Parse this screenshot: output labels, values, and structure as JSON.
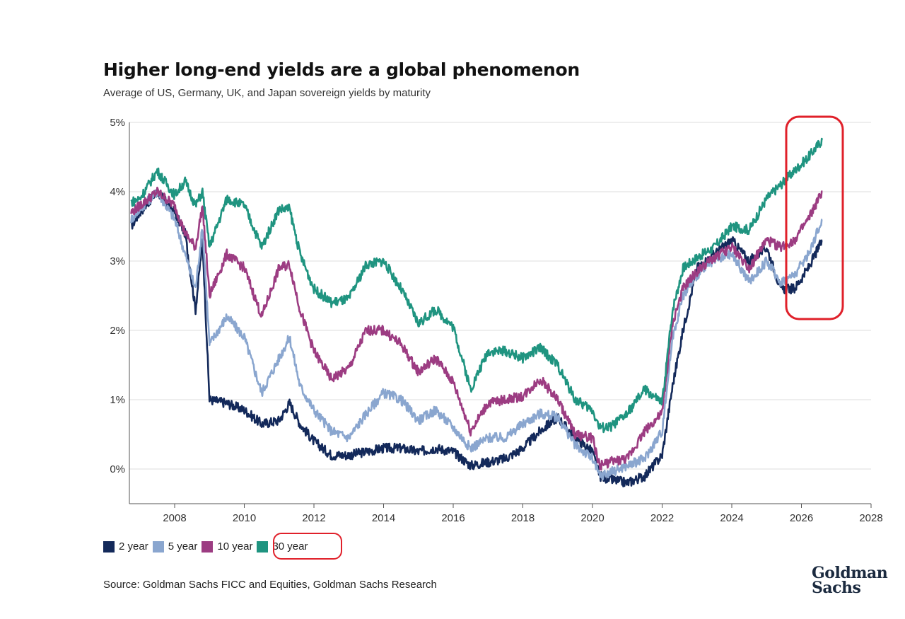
{
  "title": "Higher long-end yields are a global phenomenon",
  "subtitle": "Average of US, Germany, UK, and Japan sovereign yields by maturity",
  "source": "Source: Goldman Sachs FICC and Equities, Goldman Sachs Research",
  "logo": {
    "line1": "Goldman",
    "line2": "Sachs"
  },
  "chart_data": {
    "type": "line",
    "title": "Higher long-end yields are a global phenomenon",
    "subtitle": "Average of US, Germany, UK, and Japan sovereign yields by maturity",
    "xlabel": "",
    "ylabel": "",
    "xlim": [
      2006.7,
      2028
    ],
    "ylim": [
      -0.5,
      5
    ],
    "x_ticks": [
      "2008",
      "2010",
      "2012",
      "2014",
      "2016",
      "2018",
      "2020",
      "2022",
      "2024",
      "2026",
      "2028"
    ],
    "y_ticks": [
      "0%",
      "1%",
      "2%",
      "3%",
      "4%",
      "5%"
    ],
    "grid": "horizontal",
    "legend_position": "bottom-left",
    "highlights": [
      "30 year legend entry circled in red",
      "2025-2026 end of series circled in red"
    ],
    "series": [
      {
        "name": "2 year",
        "color": "#13295a",
        "x": [
          2006.75,
          2007.0,
          2007.5,
          2008.0,
          2008.3,
          2008.6,
          2008.8,
          2009.0,
          2009.5,
          2010.0,
          2010.5,
          2011.0,
          2011.3,
          2011.6,
          2012.0,
          2012.5,
          2013.0,
          2013.5,
          2014.0,
          2014.5,
          2015.0,
          2015.5,
          2016.0,
          2016.5,
          2017.0,
          2017.5,
          2018.0,
          2018.5,
          2019.0,
          2019.5,
          2020.0,
          2020.2,
          2020.5,
          2021.0,
          2021.5,
          2022.0,
          2022.3,
          2022.6,
          2023.0,
          2023.5,
          2024.0,
          2024.5,
          2025.0,
          2025.4,
          2025.8,
          2026.2,
          2026.6
        ],
        "values": [
          3.5,
          3.7,
          4.0,
          3.7,
          3.4,
          2.3,
          3.3,
          1.0,
          0.95,
          0.85,
          0.65,
          0.7,
          0.95,
          0.65,
          0.4,
          0.2,
          0.2,
          0.25,
          0.3,
          0.3,
          0.25,
          0.3,
          0.25,
          0.05,
          0.1,
          0.15,
          0.3,
          0.55,
          0.75,
          0.45,
          0.25,
          -0.1,
          -0.15,
          -0.2,
          -0.1,
          0.2,
          1.2,
          2.0,
          2.9,
          3.1,
          3.3,
          3.0,
          3.2,
          2.6,
          2.6,
          2.9,
          3.3
        ]
      },
      {
        "name": "5 year",
        "color": "#8aa6cf",
        "x": [
          2006.75,
          2007.0,
          2007.5,
          2008.0,
          2008.3,
          2008.6,
          2008.8,
          2009.0,
          2009.5,
          2010.0,
          2010.5,
          2011.0,
          2011.3,
          2011.6,
          2012.0,
          2012.5,
          2013.0,
          2013.5,
          2014.0,
          2014.5,
          2015.0,
          2015.5,
          2016.0,
          2016.5,
          2017.0,
          2017.5,
          2018.0,
          2018.5,
          2019.0,
          2019.5,
          2020.0,
          2020.2,
          2020.5,
          2021.0,
          2021.5,
          2022.0,
          2022.3,
          2022.6,
          2023.0,
          2023.5,
          2024.0,
          2024.5,
          2025.0,
          2025.4,
          2025.8,
          2026.2,
          2026.6
        ],
        "values": [
          3.6,
          3.75,
          4.0,
          3.6,
          3.1,
          2.6,
          3.5,
          1.8,
          2.2,
          1.9,
          1.1,
          1.6,
          1.9,
          1.2,
          0.85,
          0.55,
          0.45,
          0.8,
          1.1,
          1.0,
          0.7,
          0.85,
          0.6,
          0.3,
          0.45,
          0.45,
          0.65,
          0.8,
          0.75,
          0.35,
          0.15,
          -0.1,
          -0.05,
          0.05,
          0.15,
          0.55,
          1.9,
          2.5,
          2.8,
          3.0,
          3.1,
          2.7,
          3.0,
          2.7,
          2.8,
          3.1,
          3.6
        ]
      },
      {
        "name": "10 year",
        "color": "#9c3c82",
        "x": [
          2006.75,
          2007.0,
          2007.5,
          2008.0,
          2008.3,
          2008.6,
          2008.8,
          2009.0,
          2009.5,
          2010.0,
          2010.5,
          2011.0,
          2011.3,
          2011.6,
          2012.0,
          2012.5,
          2013.0,
          2013.5,
          2014.0,
          2014.5,
          2015.0,
          2015.5,
          2016.0,
          2016.5,
          2017.0,
          2017.5,
          2018.0,
          2018.5,
          2019.0,
          2019.5,
          2020.0,
          2020.2,
          2020.5,
          2021.0,
          2021.5,
          2022.0,
          2022.3,
          2022.6,
          2023.0,
          2023.5,
          2024.0,
          2024.5,
          2025.0,
          2025.4,
          2025.8,
          2026.2,
          2026.6
        ],
        "values": [
          3.7,
          3.8,
          4.0,
          3.8,
          3.4,
          3.2,
          3.8,
          2.5,
          3.1,
          2.9,
          2.2,
          2.9,
          2.95,
          2.3,
          1.7,
          1.3,
          1.45,
          2.0,
          2.0,
          1.8,
          1.4,
          1.6,
          1.25,
          0.55,
          0.95,
          1.0,
          1.05,
          1.3,
          1.0,
          0.5,
          0.45,
          0.05,
          0.1,
          0.15,
          0.55,
          0.8,
          2.1,
          2.6,
          2.85,
          3.05,
          3.2,
          2.9,
          3.3,
          3.2,
          3.3,
          3.6,
          4.0
        ]
      },
      {
        "name": "30 year",
        "color": "#1f9480",
        "x": [
          2006.75,
          2007.0,
          2007.5,
          2008.0,
          2008.3,
          2008.6,
          2008.8,
          2009.0,
          2009.5,
          2010.0,
          2010.5,
          2011.0,
          2011.3,
          2011.6,
          2012.0,
          2012.5,
          2013.0,
          2013.5,
          2014.0,
          2014.5,
          2015.0,
          2015.5,
          2016.0,
          2016.5,
          2017.0,
          2017.5,
          2018.0,
          2018.5,
          2019.0,
          2019.5,
          2020.0,
          2020.2,
          2020.5,
          2021.0,
          2021.5,
          2022.0,
          2022.3,
          2022.6,
          2023.0,
          2023.5,
          2024.0,
          2024.5,
          2025.0,
          2025.4,
          2025.8,
          2026.2,
          2026.6
        ],
        "values": [
          3.85,
          3.9,
          4.3,
          3.95,
          4.15,
          3.8,
          4.0,
          3.2,
          3.9,
          3.8,
          3.2,
          3.75,
          3.75,
          3.1,
          2.6,
          2.4,
          2.45,
          2.95,
          3.0,
          2.6,
          2.1,
          2.3,
          2.05,
          1.15,
          1.7,
          1.7,
          1.6,
          1.75,
          1.5,
          1.0,
          0.85,
          0.6,
          0.6,
          0.8,
          1.15,
          0.95,
          2.3,
          2.9,
          3.05,
          3.2,
          3.5,
          3.45,
          3.9,
          4.1,
          4.3,
          4.5,
          4.75
        ]
      }
    ]
  }
}
